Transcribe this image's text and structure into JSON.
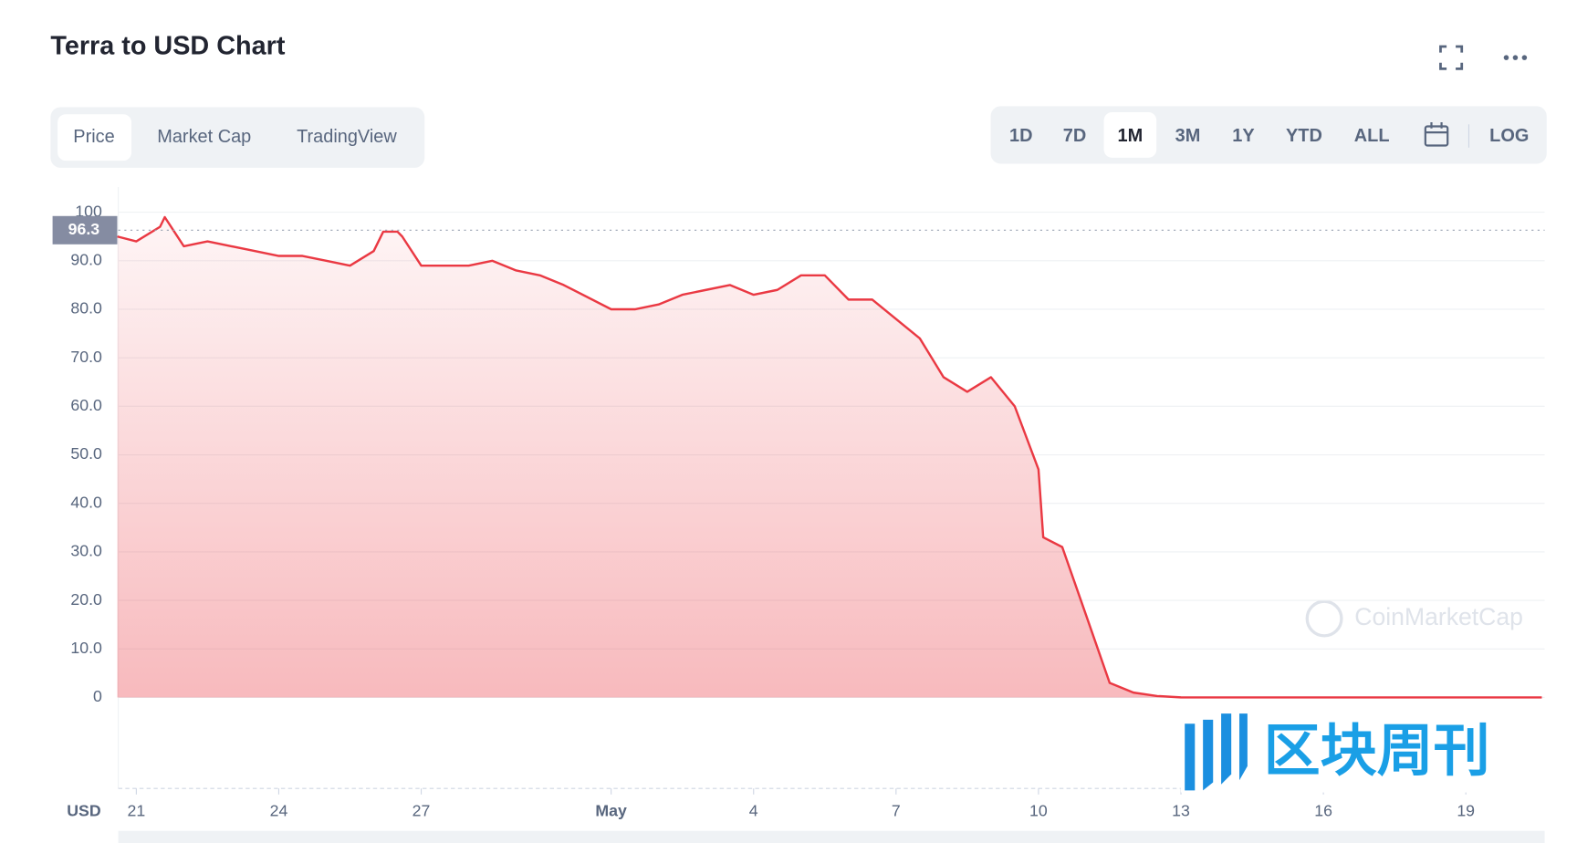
{
  "header": {
    "title": "Terra to USD Chart"
  },
  "tabs": [
    "Price",
    "Market Cap",
    "TradingView"
  ],
  "ranges": [
    "1D",
    "7D",
    "1M",
    "3M",
    "1Y",
    "YTD",
    "ALL"
  ],
  "log_button": "LOG",
  "watermark": "CoinMarketCap",
  "badge": "区块周刊",
  "chart_data": {
    "type": "line",
    "y_label": "USD",
    "x": [
      -0.4,
      0,
      0.5,
      0.6,
      1,
      1.5,
      2,
      2.5,
      3,
      3.5,
      4,
      4.5,
      5,
      5.2,
      5.5,
      5.6,
      6,
      6.5,
      7,
      7.5,
      8,
      8.5,
      9,
      10,
      10.5,
      11,
      11.5,
      12,
      12.5,
      13,
      13.5,
      14,
      14.5,
      15,
      15.5,
      16,
      16.5,
      17,
      17.5,
      18,
      18.5,
      19,
      19.1,
      19.5,
      20,
      20.5,
      21,
      21.5,
      22,
      24,
      27,
      29.6
    ],
    "series": [
      {
        "name": "Price",
        "color": "#ea3943",
        "values": [
          95,
          94,
          97,
          99,
          93,
          94,
          93,
          92,
          91,
          91,
          90,
          89,
          92,
          96,
          96,
          95,
          89,
          89,
          89,
          90,
          88,
          87,
          85,
          80,
          80,
          81,
          83,
          84,
          85,
          83,
          84,
          87,
          87,
          82,
          82,
          78,
          74,
          66,
          63,
          66,
          60,
          47,
          33,
          31,
          17,
          3,
          1,
          0.3,
          0.01,
          0,
          0,
          0
        ]
      }
    ],
    "reference": 96.3,
    "xlim": [
      -0.38,
      29.66
    ],
    "xticks": [
      {
        "value": 0,
        "label": "21"
      },
      {
        "value": 3,
        "label": "24"
      },
      {
        "value": 6,
        "label": "27"
      },
      {
        "value": 10,
        "label": "May"
      },
      {
        "value": 13,
        "label": "4"
      },
      {
        "value": 16,
        "label": "7"
      },
      {
        "value": 19,
        "label": "10"
      },
      {
        "value": 22,
        "label": "13"
      },
      {
        "value": 25,
        "label": "16"
      },
      {
        "value": 28,
        "label": "19"
      }
    ],
    "ylim": [
      -18.75,
      105.2
    ],
    "yticks": [
      0,
      {
        "value": 10,
        "label": "10.0"
      },
      {
        "value": 20,
        "label": "20.0"
      },
      {
        "value": 30,
        "label": "30.0"
      },
      {
        "value": 40,
        "label": "40.0"
      },
      {
        "value": 50,
        "label": "50.0"
      },
      {
        "value": 60,
        "label": "60.0"
      },
      {
        "value": 70,
        "label": "70.0"
      },
      {
        "value": 80,
        "label": "80.0"
      },
      {
        "value": 90,
        "label": "90.0"
      },
      100
    ],
    "grid": true
  }
}
